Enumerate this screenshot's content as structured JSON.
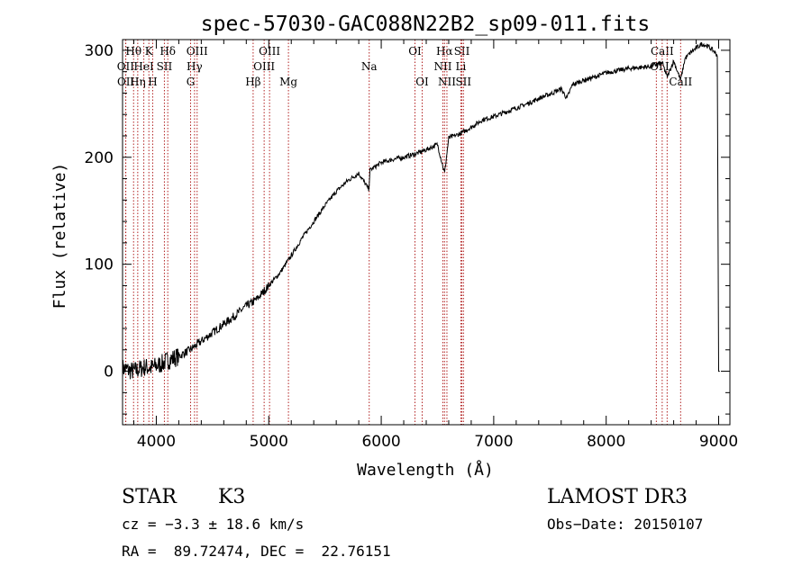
{
  "chart_data": {
    "type": "line",
    "title": "spec-57030-GAC088N22B2_sp09-011.fits",
    "xlabel": "Wavelength (Å)",
    "ylabel": "Flux (relative)",
    "xlim": [
      3700,
      9100
    ],
    "ylim": [
      -50,
      310
    ],
    "xticks": [
      4000,
      5000,
      6000,
      7000,
      8000,
      9000
    ],
    "yticks": [
      0,
      100,
      200,
      300
    ],
    "series": [
      {
        "name": "flux",
        "x": [
          3700,
          3750,
          3800,
          3850,
          3900,
          3950,
          4000,
          4050,
          4100,
          4150,
          4200,
          4250,
          4300,
          4350,
          4400,
          4450,
          4500,
          4600,
          4700,
          4800,
          4850,
          4900,
          4950,
          5000,
          5100,
          5200,
          5300,
          5400,
          5500,
          5600,
          5700,
          5800,
          5890,
          5900,
          6000,
          6100,
          6200,
          6300,
          6400,
          6500,
          6563,
          6600,
          6700,
          6800,
          6900,
          7000,
          7100,
          7200,
          7300,
          7400,
          7500,
          7600,
          7650,
          7700,
          7800,
          7900,
          8000,
          8100,
          8200,
          8300,
          8400,
          8450,
          8500,
          8542,
          8600,
          8662,
          8700,
          8750,
          8800,
          8850,
          8900,
          8950,
          8990,
          9000,
          9010
        ],
        "y": [
          3,
          1,
          0,
          2,
          4,
          3,
          5,
          7,
          10,
          12,
          14,
          17,
          20,
          24,
          28,
          32,
          36,
          44,
          52,
          61,
          64,
          68,
          74,
          80,
          92,
          108,
          125,
          140,
          155,
          168,
          178,
          185,
          170,
          188,
          195,
          198,
          200,
          203,
          207,
          212,
          185,
          218,
          222,
          228,
          235,
          238,
          242,
          246,
          250,
          255,
          259,
          264,
          255,
          268,
          272,
          275,
          279,
          281,
          283,
          284,
          285,
          287,
          288,
          275,
          290,
          272,
          292,
          298,
          302,
          306,
          304,
          300,
          295,
          0,
          0
        ]
      }
    ],
    "line_markers": {
      "upper": [
        {
          "label": "Hθ",
          "wl": 3798
        },
        {
          "label": "K",
          "wl": 3934
        },
        {
          "label": "Hδ",
          "wl": 4102
        },
        {
          "label": "OIII",
          "wl": 4363
        },
        {
          "label": "OIII",
          "wl": 5007
        },
        {
          "label": "OI",
          "wl": 6300
        },
        {
          "label": "Hα",
          "wl": 6563
        },
        {
          "label": "SII",
          "wl": 6717
        },
        {
          "label": "CaII",
          "wl": 8498
        }
      ],
      "middle": [
        {
          "label": "OII",
          "wl": 3727
        },
        {
          "label": "HeI",
          "wl": 3889
        },
        {
          "label": "SII",
          "wl": 4072
        },
        {
          "label": "Hγ",
          "wl": 4340
        },
        {
          "label": "OIII",
          "wl": 4959
        },
        {
          "label": "Na",
          "wl": 5893
        },
        {
          "label": "NII",
          "wl": 6548
        },
        {
          "label": "Li",
          "wl": 6708
        },
        {
          "label": "OI",
          "wl": 8446
        },
        {
          "label": "I",
          "wl": 8542
        }
      ],
      "lower": [
        {
          "label": "OII",
          "wl": 3729
        },
        {
          "label": "Hη",
          "wl": 3835
        },
        {
          "label": "H",
          "wl": 3968
        },
        {
          "label": "G",
          "wl": 4305
        },
        {
          "label": "Hβ",
          "wl": 4861
        },
        {
          "label": "Mg",
          "wl": 5175
        },
        {
          "label": "OI",
          "wl": 6364
        },
        {
          "label": "NII",
          "wl": 6584
        },
        {
          "label": "SII",
          "wl": 6731
        },
        {
          "label": "CaII",
          "wl": 8662
        }
      ]
    }
  },
  "info": {
    "object_class": "STAR",
    "subclass": "K3",
    "survey": "LAMOST DR3",
    "redshift": "cz = −3.3 ± 18.6 km/s",
    "obs_date": "Obs−Date: 20150107",
    "coords": "RA =  89.72474, DEC =  22.76151"
  },
  "colors": {
    "line": "#000000",
    "marker": "#b22222",
    "background": "#ffffff"
  }
}
